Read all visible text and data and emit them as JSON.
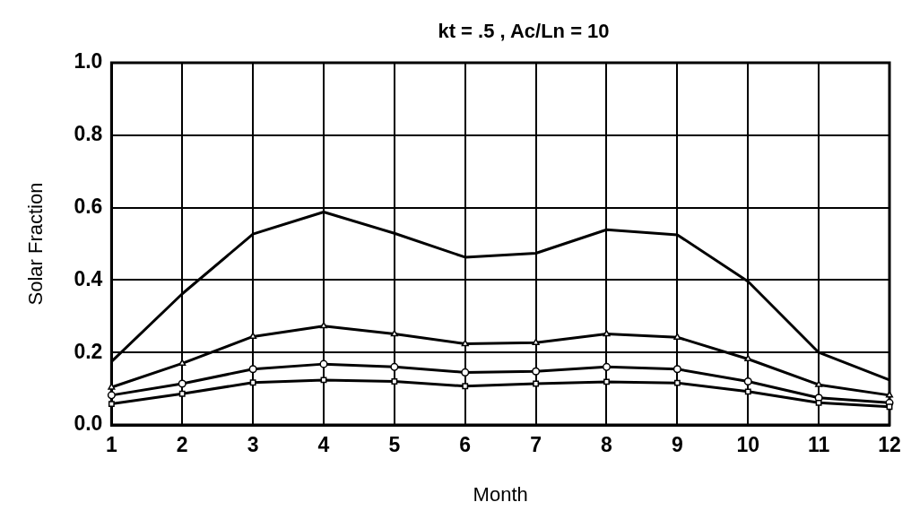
{
  "chart_data": {
    "type": "line",
    "title": "kt = .5 , Ac/Ln = 10",
    "xlabel": "Month",
    "ylabel": "Solar Fraction",
    "x": [
      1,
      2,
      3,
      4,
      5,
      6,
      7,
      8,
      9,
      10,
      11,
      12
    ],
    "series": [
      {
        "color": "#000000",
        "marker": "none",
        "values": [
          0.175,
          0.362,
          0.527,
          0.588,
          0.529,
          0.463,
          0.474,
          0.539,
          0.525,
          0.396,
          0.2,
          0.124
        ]
      },
      {
        "color": "#000000",
        "marker": "triangle",
        "values": [
          0.104,
          0.17,
          0.244,
          0.273,
          0.251,
          0.224,
          0.227,
          0.251,
          0.242,
          0.182,
          0.111,
          0.082
        ]
      },
      {
        "color": "#000000",
        "marker": "circle",
        "values": [
          0.082,
          0.114,
          0.154,
          0.168,
          0.16,
          0.145,
          0.148,
          0.16,
          0.154,
          0.12,
          0.075,
          0.061
        ]
      },
      {
        "color": "#000000",
        "marker": "square",
        "values": [
          0.058,
          0.086,
          0.117,
          0.124,
          0.12,
          0.107,
          0.114,
          0.119,
          0.116,
          0.092,
          0.061,
          0.05
        ]
      }
    ],
    "xlim": [
      1,
      12
    ],
    "xticks": [
      1,
      2,
      3,
      4,
      5,
      6,
      7,
      8,
      9,
      10,
      11,
      12
    ],
    "ylim": [
      0,
      1
    ],
    "yticks": [
      {
        "value": 0,
        "label": "0.0"
      },
      {
        "value": 0.2,
        "label": "0.2"
      },
      {
        "value": 0.4,
        "label": "0.4"
      },
      {
        "value": 0.6,
        "label": "0.6"
      },
      {
        "value": 0.8,
        "label": "0.8"
      },
      {
        "value": 1,
        "label": "1.0"
      }
    ],
    "grid": true,
    "legend": false,
    "line_style": "solid"
  }
}
